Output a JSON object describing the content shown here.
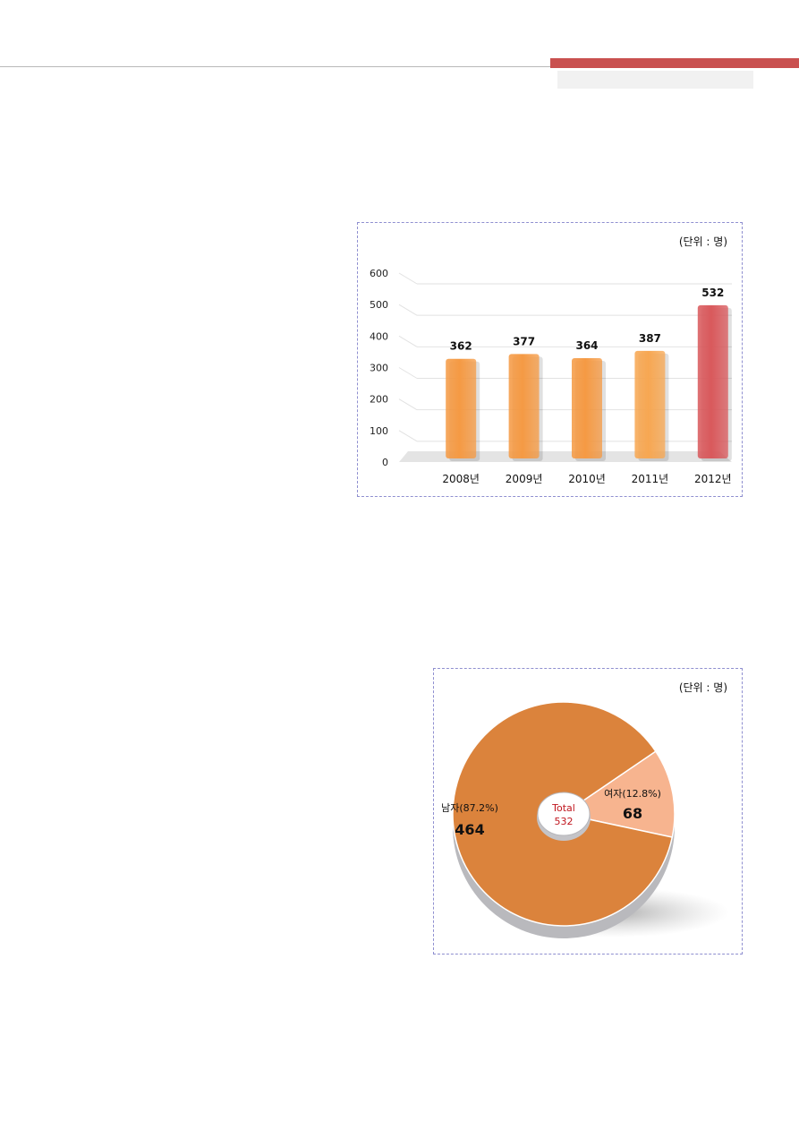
{
  "chart_data": [
    {
      "type": "bar",
      "unit": "(단위 : 명)",
      "categories": [
        "2008년",
        "2009년",
        "2010년",
        "2011년",
        "2012년"
      ],
      "values": [
        362,
        377,
        364,
        387,
        532
      ],
      "ylim": [
        0,
        600
      ],
      "yticks": [
        0,
        100,
        200,
        300,
        400,
        500,
        600
      ],
      "grid": true,
      "colors": [
        "#f59a44",
        "#f59a44",
        "#f59a44",
        "#f7a752",
        "#d9595c"
      ]
    },
    {
      "type": "pie",
      "unit": "(단위 : 명)",
      "center_label": "Total",
      "center_value": "532",
      "slices": [
        {
          "label": "남자(87.2%)",
          "value": 464,
          "value_text": "464",
          "color": "#db833c"
        },
        {
          "label": "여자(12.8%)",
          "value": 68,
          "value_text": "68",
          "color": "#f7b48f"
        }
      ]
    }
  ]
}
